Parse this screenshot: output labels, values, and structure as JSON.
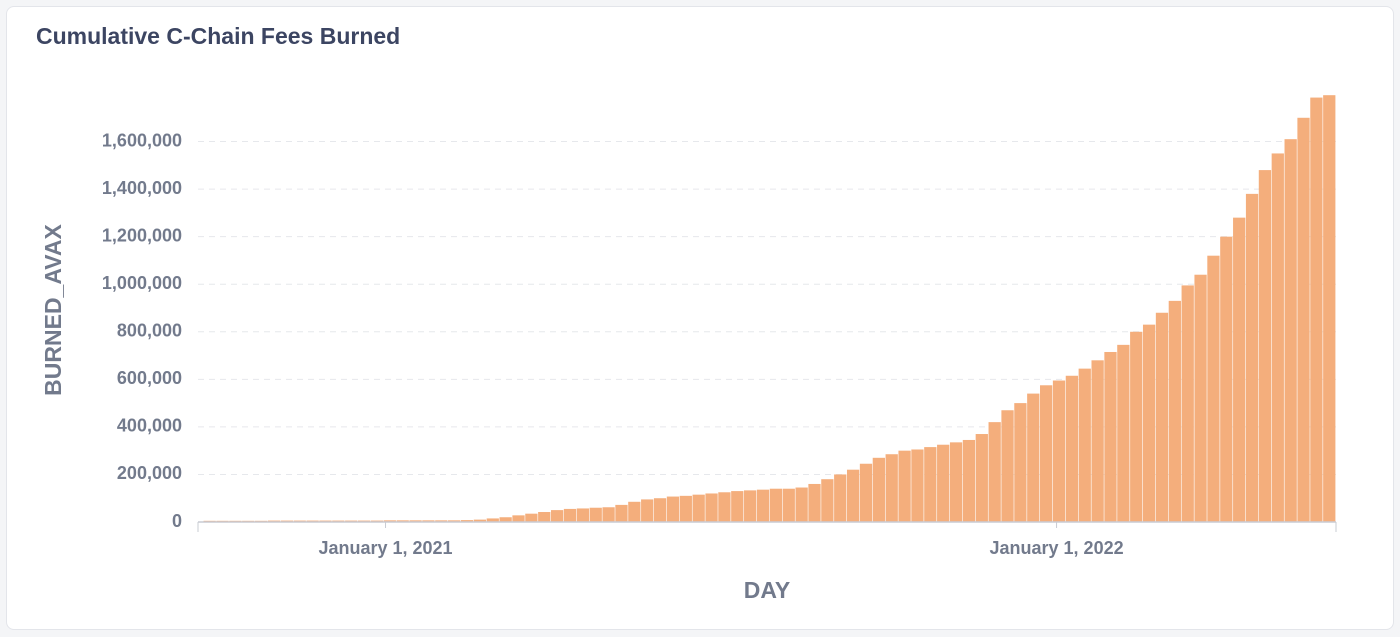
{
  "chart_data": {
    "type": "bar",
    "title": "Cumulative C-Chain Fees Burned",
    "x_label": "DAY",
    "y_label": "BURNED_AVAX",
    "color": "#f4ae7c",
    "grid": true,
    "x": [
      "2020-09-24",
      "2020-10-01",
      "2020-10-08",
      "2020-10-15",
      "2020-10-22",
      "2020-10-29",
      "2020-11-05",
      "2020-11-12",
      "2020-11-19",
      "2020-11-26",
      "2020-12-03",
      "2020-12-10",
      "2020-12-17",
      "2020-12-24",
      "2020-12-31",
      "2021-01-07",
      "2021-01-14",
      "2021-01-21",
      "2021-01-28",
      "2021-02-04",
      "2021-02-11",
      "2021-02-18",
      "2021-02-25",
      "2021-03-04",
      "2021-03-11",
      "2021-03-18",
      "2021-03-25",
      "2021-04-01",
      "2021-04-08",
      "2021-04-15",
      "2021-04-22",
      "2021-04-29",
      "2021-05-06",
      "2021-05-13",
      "2021-05-20",
      "2021-05-27",
      "2021-06-03",
      "2021-06-10",
      "2021-06-17",
      "2021-06-24",
      "2021-07-01",
      "2021-07-08",
      "2021-07-15",
      "2021-07-22",
      "2021-07-29",
      "2021-08-05",
      "2021-08-12",
      "2021-08-19",
      "2021-08-26",
      "2021-09-02",
      "2021-09-09",
      "2021-09-16",
      "2021-09-23",
      "2021-09-30",
      "2021-10-07",
      "2021-10-14",
      "2021-10-21",
      "2021-10-28",
      "2021-11-04",
      "2021-11-11",
      "2021-11-18",
      "2021-11-25",
      "2021-12-02",
      "2021-12-09",
      "2021-12-16",
      "2021-12-23",
      "2021-12-30",
      "2022-01-06",
      "2022-01-13",
      "2022-01-20",
      "2022-01-27",
      "2022-02-03",
      "2022-02-10",
      "2022-02-17",
      "2022-02-24",
      "2022-03-03",
      "2022-03-10",
      "2022-03-17",
      "2022-03-24",
      "2022-03-31",
      "2022-04-07",
      "2022-04-14",
      "2022-04-21",
      "2022-04-28",
      "2022-05-05",
      "2022-05-12",
      "2022-05-19",
      "2022-05-26"
    ],
    "values": [
      5000,
      5000,
      5000,
      5000,
      5000,
      6000,
      6000,
      6000,
      6000,
      6000,
      6000,
      6000,
      6000,
      6000,
      7000,
      7000,
      7000,
      7000,
      7000,
      7000,
      8000,
      10000,
      15000,
      20000,
      28000,
      35000,
      42000,
      50000,
      55000,
      57000,
      60000,
      62000,
      72000,
      85000,
      95000,
      100000,
      107000,
      110000,
      115000,
      120000,
      125000,
      130000,
      133000,
      136000,
      140000,
      140000,
      145000,
      160000,
      180000,
      200000,
      220000,
      245000,
      270000,
      285000,
      300000,
      305000,
      315000,
      325000,
      335000,
      345000,
      370000,
      420000,
      470000,
      500000,
      540000,
      575000,
      595000,
      615000,
      645000,
      680000,
      715000,
      745000,
      800000,
      830000,
      880000,
      930000,
      995000,
      1040000,
      1120000,
      1200000,
      1280000,
      1380000,
      1480000,
      1550000,
      1610000,
      1700000,
      1785000,
      1795000
    ],
    "xlim": [
      "2020-09-21",
      "2022-06-02"
    ],
    "xticks": [
      {
        "value": "2021-01-01",
        "label": "January 1, 2021"
      },
      {
        "value": "2022-01-01",
        "label": "January 1, 2022"
      }
    ],
    "ylim": [
      0,
      1800000
    ],
    "yticks": [
      0,
      {
        "value": 200000,
        "label": "200,000"
      },
      {
        "value": 400000,
        "label": "400,000"
      },
      {
        "value": 600000,
        "label": "600,000"
      },
      {
        "value": 800000,
        "label": "800,000"
      },
      {
        "value": 1000000,
        "label": "1,000,000"
      },
      {
        "value": 1200000,
        "label": "1,200,000"
      },
      {
        "value": 1400000,
        "label": "1,400,000"
      },
      {
        "value": 1600000,
        "label": "1,600,000"
      }
    ]
  }
}
